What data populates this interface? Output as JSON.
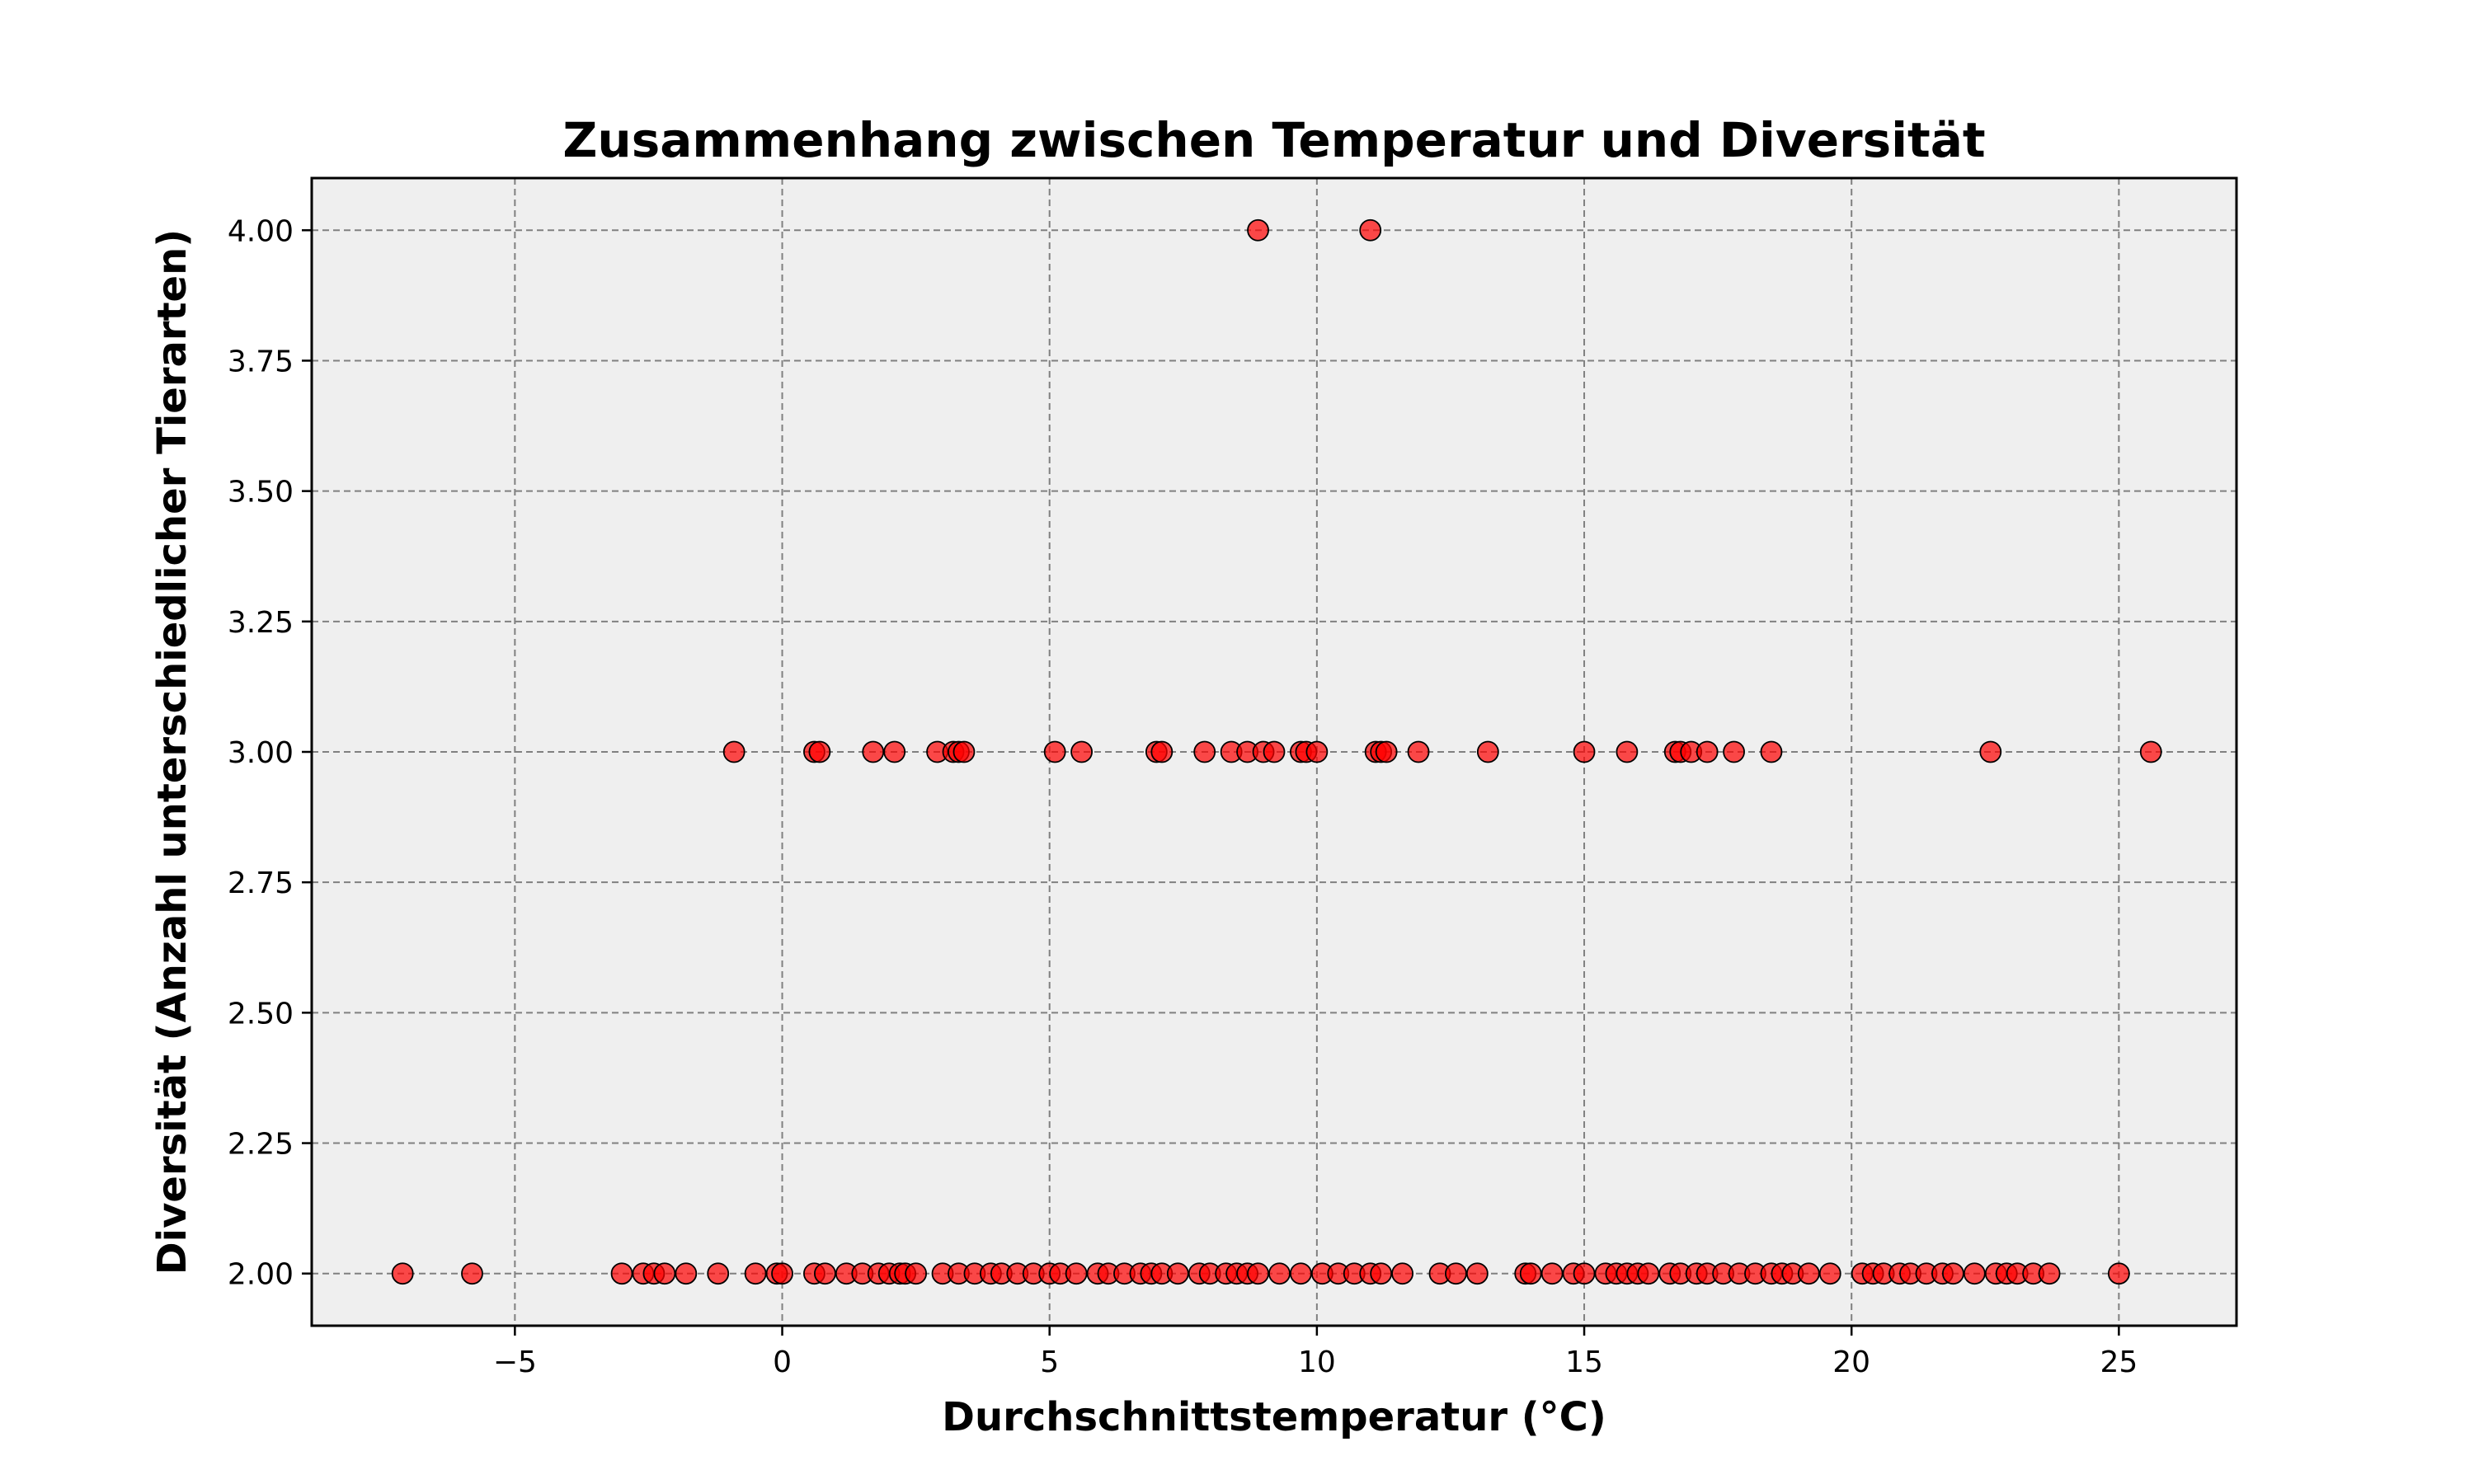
{
  "chart_data": {
    "type": "scatter",
    "title": "Zusammenhang zwischen Temperatur und Diversität",
    "xlabel": "Durchschnittstemperatur (°C)",
    "ylabel": "Diversität (Anzahl unterschiedlicher Tierarten)",
    "xlim": [
      -8.8,
      27.2
    ],
    "ylim": [
      1.9,
      4.1
    ],
    "xticks": [
      -5,
      0,
      5,
      10,
      15,
      20,
      25
    ],
    "xtick_labels": [
      "−5",
      "0",
      "5",
      "10",
      "15",
      "20",
      "25"
    ],
    "yticks": [
      2.0,
      2.25,
      2.5,
      2.75,
      3.0,
      3.25,
      3.5,
      3.75,
      4.0
    ],
    "ytick_labels": [
      "2.00",
      "2.25",
      "2.50",
      "2.75",
      "3.00",
      "3.25",
      "3.50",
      "3.75",
      "4.00"
    ],
    "grid": true,
    "marker_color": "#ff0000",
    "marker_edge_color": "#000000",
    "background_color": "#efefef",
    "series": [
      {
        "x": [
          8.9,
          11.0,
          -0.9,
          0.6,
          0.7,
          1.7,
          2.1,
          2.9,
          3.2,
          3.3,
          3.4,
          5.1,
          5.6,
          7.0,
          7.1,
          7.9,
          8.4,
          8.7,
          9.0,
          9.2,
          9.7,
          9.8,
          10.0,
          11.1,
          11.2,
          11.3,
          11.9,
          13.2,
          15.0,
          15.8,
          16.7,
          16.8,
          17.0,
          17.3,
          17.8,
          18.5,
          22.6,
          25.6,
          -7.1,
          -5.8,
          -3.0,
          -2.6,
          -2.4,
          -2.2,
          -1.8,
          -1.2,
          -0.5,
          -0.1,
          0.0,
          0.6,
          0.8,
          1.2,
          1.5,
          1.8,
          2.0,
          2.2,
          2.3,
          2.5,
          3.0,
          3.3,
          3.6,
          3.9,
          4.1,
          4.4,
          4.7,
          5.0,
          5.2,
          5.5,
          5.9,
          6.1,
          6.4,
          6.7,
          6.9,
          7.1,
          7.4,
          7.8,
          8.0,
          8.3,
          8.5,
          8.7,
          8.9,
          9.3,
          9.7,
          10.1,
          10.4,
          10.7,
          11.0,
          11.2,
          11.6,
          12.3,
          12.6,
          13.0,
          13.9,
          14.0,
          14.4,
          14.8,
          15.0,
          15.4,
          15.6,
          15.8,
          16.0,
          16.2,
          16.6,
          16.8,
          17.1,
          17.3,
          17.6,
          17.9,
          18.2,
          18.5,
          18.7,
          18.9,
          19.2,
          19.6,
          20.2,
          20.4,
          20.6,
          20.9,
          21.1,
          21.4,
          21.7,
          21.9,
          22.3,
          22.7,
          22.9,
          23.1,
          23.4,
          23.7,
          25.0
        ],
        "y": [
          4,
          4,
          3,
          3,
          3,
          3,
          3,
          3,
          3,
          3,
          3,
          3,
          3,
          3,
          3,
          3,
          3,
          3,
          3,
          3,
          3,
          3,
          3,
          3,
          3,
          3,
          3,
          3,
          3,
          3,
          3,
          3,
          3,
          3,
          3,
          3,
          3,
          3,
          2,
          2,
          2,
          2,
          2,
          2,
          2,
          2,
          2,
          2,
          2,
          2,
          2,
          2,
          2,
          2,
          2,
          2,
          2,
          2,
          2,
          2,
          2,
          2,
          2,
          2,
          2,
          2,
          2,
          2,
          2,
          2,
          2,
          2,
          2,
          2,
          2,
          2,
          2,
          2,
          2,
          2,
          2,
          2,
          2,
          2,
          2,
          2,
          2,
          2,
          2,
          2,
          2,
          2,
          2,
          2,
          2,
          2,
          2,
          2,
          2,
          2,
          2,
          2,
          2,
          2,
          2,
          2,
          2,
          2,
          2,
          2,
          2,
          2,
          2,
          2,
          2,
          2,
          2,
          2,
          2,
          2,
          2,
          2,
          2,
          2,
          2,
          2,
          2,
          2,
          2
        ]
      }
    ]
  }
}
